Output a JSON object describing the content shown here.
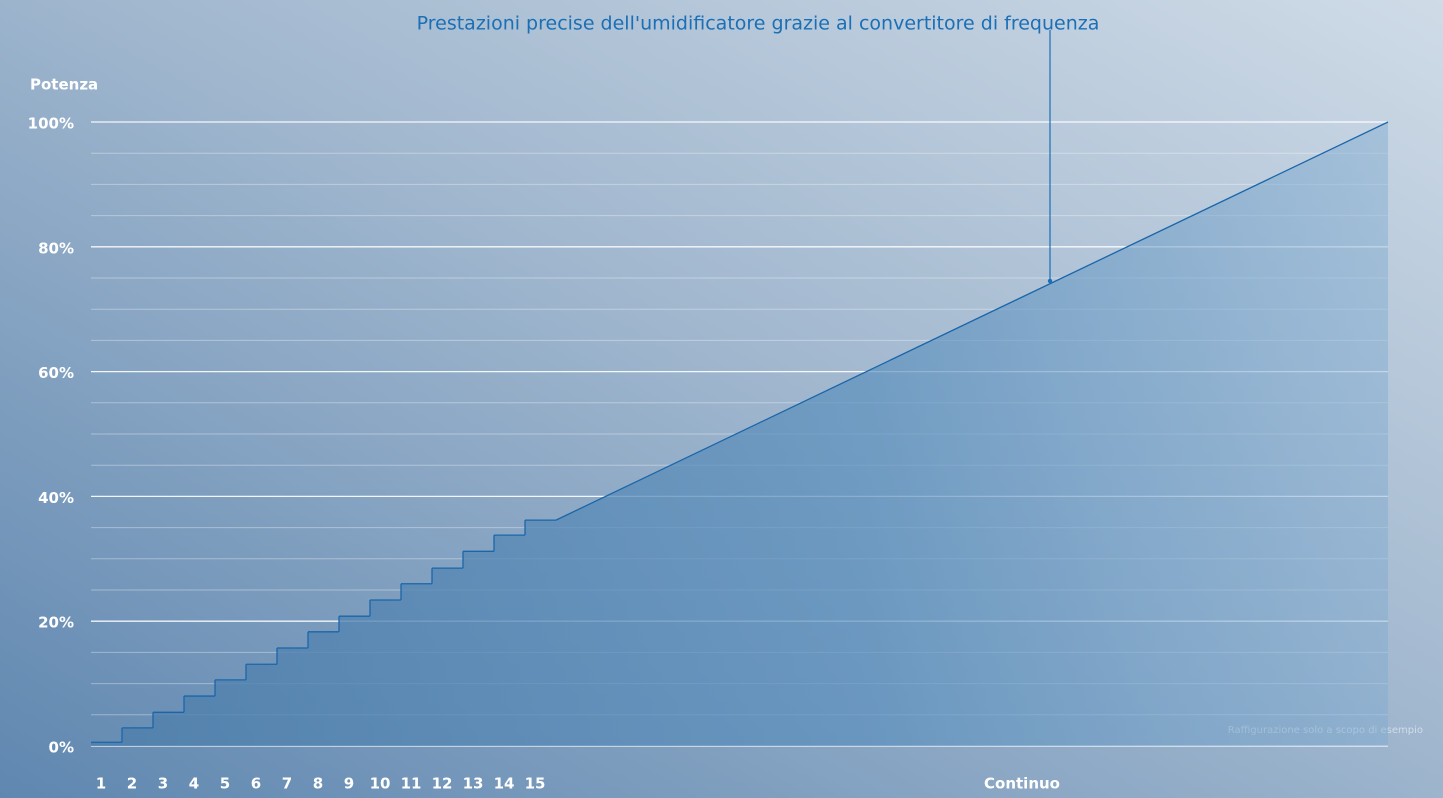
{
  "chart_data": {
    "type": "step-area",
    "title": "Prestazioni precise dell'umidificatore grazie al convertitore di frequenza",
    "y_label": "Potenza",
    "note": "Raffigurazione solo a scopo di esempio",
    "categories": [
      "1",
      "2",
      "3",
      "4",
      "5",
      "6",
      "7",
      "8",
      "9",
      "10",
      "11",
      "12",
      "13",
      "14",
      "15"
    ],
    "values": [
      0.6,
      2.9,
      5.4,
      8.0,
      10.6,
      13.1,
      15.7,
      18.3,
      20.8,
      23.4,
      26.0,
      28.5,
      31.2,
      33.8,
      36.2
    ],
    "continuous": {
      "label": "Continuo",
      "values": [
        36.2,
        100
      ]
    },
    "ylim": [
      0,
      100
    ],
    "yticks": [
      {
        "value": 0,
        "label": "0%"
      },
      {
        "value": 20,
        "label": "20%"
      },
      {
        "value": 40,
        "label": "40%"
      },
      {
        "value": 60,
        "label": "60%"
      },
      {
        "value": 80,
        "label": "80%"
      },
      {
        "value": 100,
        "label": "100%"
      }
    ],
    "minor_gridlines": [
      5,
      10,
      15,
      25,
      30,
      35,
      45,
      50,
      55,
      65,
      70,
      75,
      85,
      90,
      95
    ],
    "color": "#1a66aa",
    "title_color": "#1a6fb5",
    "grid": true
  }
}
